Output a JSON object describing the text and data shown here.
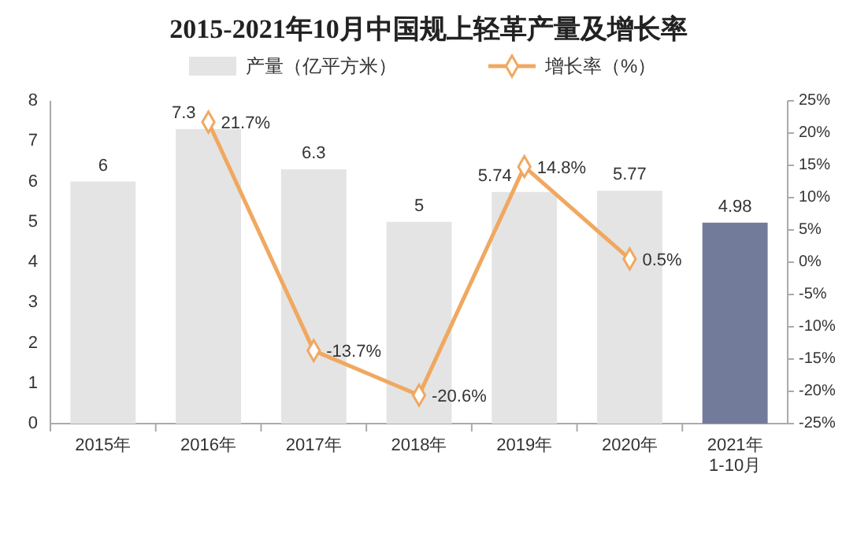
{
  "chart_data": {
    "type": "bar",
    "title": "2015-2021年10月中国规上轻革产量及增长率",
    "categories": [
      "2015年",
      "2016年",
      "2017年",
      "2018年",
      "2019年",
      "2020年",
      "2021年\n1-10月"
    ],
    "series": [
      {
        "name": "产量（亿平方米）",
        "color": "#e4e4e4",
        "colors": [
          "#e4e4e4",
          "#e4e4e4",
          "#e4e4e4",
          "#e4e4e4",
          "#e4e4e4",
          "#e4e4e4",
          "#737b9b"
        ],
        "values": [
          6,
          7.3,
          6.3,
          5,
          5.74,
          5.77,
          4.98
        ],
        "value_labels": [
          "6",
          "7.3",
          "6.3",
          "5",
          "5.74",
          "5.77",
          "4.98"
        ]
      },
      {
        "name": "增长率（%）",
        "type": "line",
        "axis": "y2",
        "color": "#f0a860",
        "marker": "diamond",
        "values": [
          null,
          21.7,
          -13.7,
          -20.6,
          14.8,
          0.5,
          null
        ],
        "value_labels": [
          null,
          "21.7%",
          "-13.7%",
          "-20.6%",
          "14.8%",
          "0.5%",
          null
        ]
      }
    ],
    "ylim": [
      0,
      8
    ],
    "yticks": [
      0,
      1,
      2,
      3,
      4,
      5,
      6,
      7,
      8
    ],
    "y2lim": [
      -25,
      25
    ],
    "y2ticks": [
      {
        "value": -25,
        "label": "-25%"
      },
      {
        "value": -20,
        "label": "-20%"
      },
      {
        "value": -15,
        "label": "-15%"
      },
      {
        "value": -10,
        "label": "-10%"
      },
      {
        "value": -5,
        "label": "-5%"
      },
      {
        "value": 0,
        "label": "0%"
      },
      {
        "value": 5,
        "label": "5%"
      },
      {
        "value": 10,
        "label": "10%"
      },
      {
        "value": 15,
        "label": "15%"
      },
      {
        "value": 20,
        "label": "20%"
      },
      {
        "value": 25,
        "label": "25%"
      }
    ],
    "grid": false,
    "legend": "top"
  }
}
